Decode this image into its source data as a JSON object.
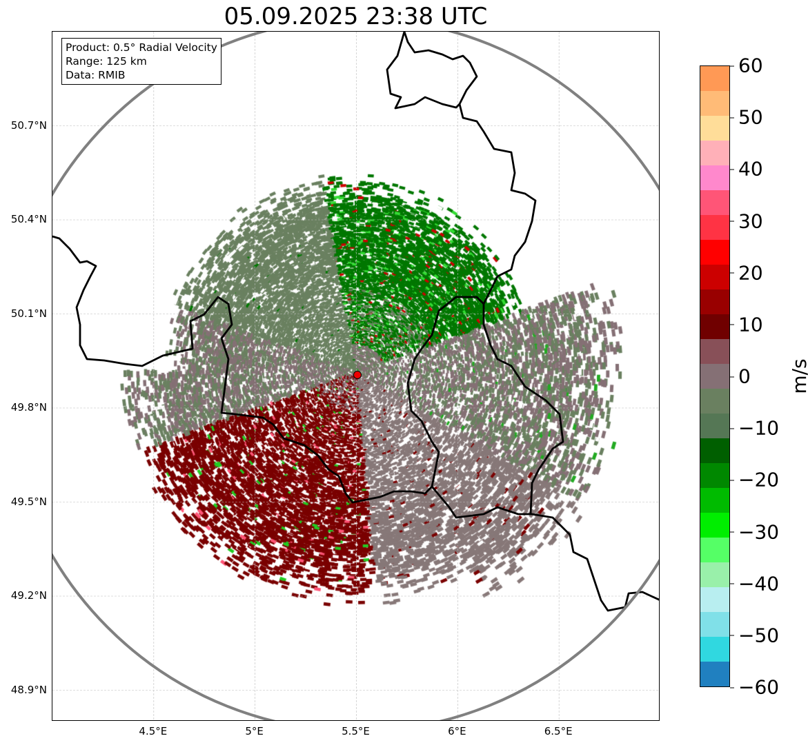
{
  "title": "05.09.2025 23:38 UTC",
  "info_box": {
    "product": "Product: 0.5° Radial Velocity",
    "range": "Range: 125 km",
    "data": "Data: RMIB"
  },
  "chart_data": {
    "type": "heatmap",
    "title": "05.09.2025 23:38 UTC",
    "extent": {
      "lon": [
        4.0,
        7.0
      ],
      "lat": [
        48.8,
        51.0
      ]
    },
    "radar_site": {
      "lon": 5.5,
      "lat": 49.915
    },
    "range_km": 125,
    "x_ticks": [
      "4.5°E",
      "5°E",
      "5.5°E",
      "6°E",
      "6.5°E"
    ],
    "x_tick_values": [
      4.5,
      5.0,
      5.5,
      6.0,
      6.5
    ],
    "y_ticks": [
      "50.7°N",
      "50.4°N",
      "50.1°N",
      "49.8°N",
      "49.5°N",
      "49.2°N",
      "48.9°N"
    ],
    "y_tick_values": [
      50.7,
      50.4,
      50.1,
      49.8,
      49.5,
      49.2,
      48.9
    ],
    "grid": true,
    "colorbar": {
      "label": "m/s",
      "range": [
        -60,
        60
      ],
      "ticks": [
        "60",
        "50",
        "40",
        "30",
        "20",
        "10",
        "0",
        "−10",
        "−20",
        "−30",
        "−40",
        "−50",
        "−60"
      ],
      "tick_values": [
        60,
        50,
        40,
        30,
        20,
        10,
        0,
        -10,
        -20,
        -30,
        -40,
        -50,
        -60
      ],
      "colors": [
        "#ff9955",
        "#ffbb77",
        "#ffdd99",
        "#ffb0b8",
        "#ff88cc",
        "#ff5577",
        "#ff3344",
        "#ff0000",
        "#cc0000",
        "#990000",
        "#700000",
        "#885058",
        "#857075",
        "#6a8060",
        "#557755",
        "#005f00",
        "#008800",
        "#00bb00",
        "#00ee00",
        "#55ff66",
        "#99f0aa",
        "#b8eef0",
        "#80e0e8",
        "#30d8e0",
        "#2080c0"
      ]
    },
    "velocity_regions": [
      {
        "sector": "north-east",
        "velocity_ms": -15
      },
      {
        "sector": "north-west",
        "velocity_ms": -2
      },
      {
        "sector": "south-west",
        "velocity_ms": 12
      },
      {
        "sector": "south-east",
        "velocity_ms": 2
      }
    ]
  }
}
